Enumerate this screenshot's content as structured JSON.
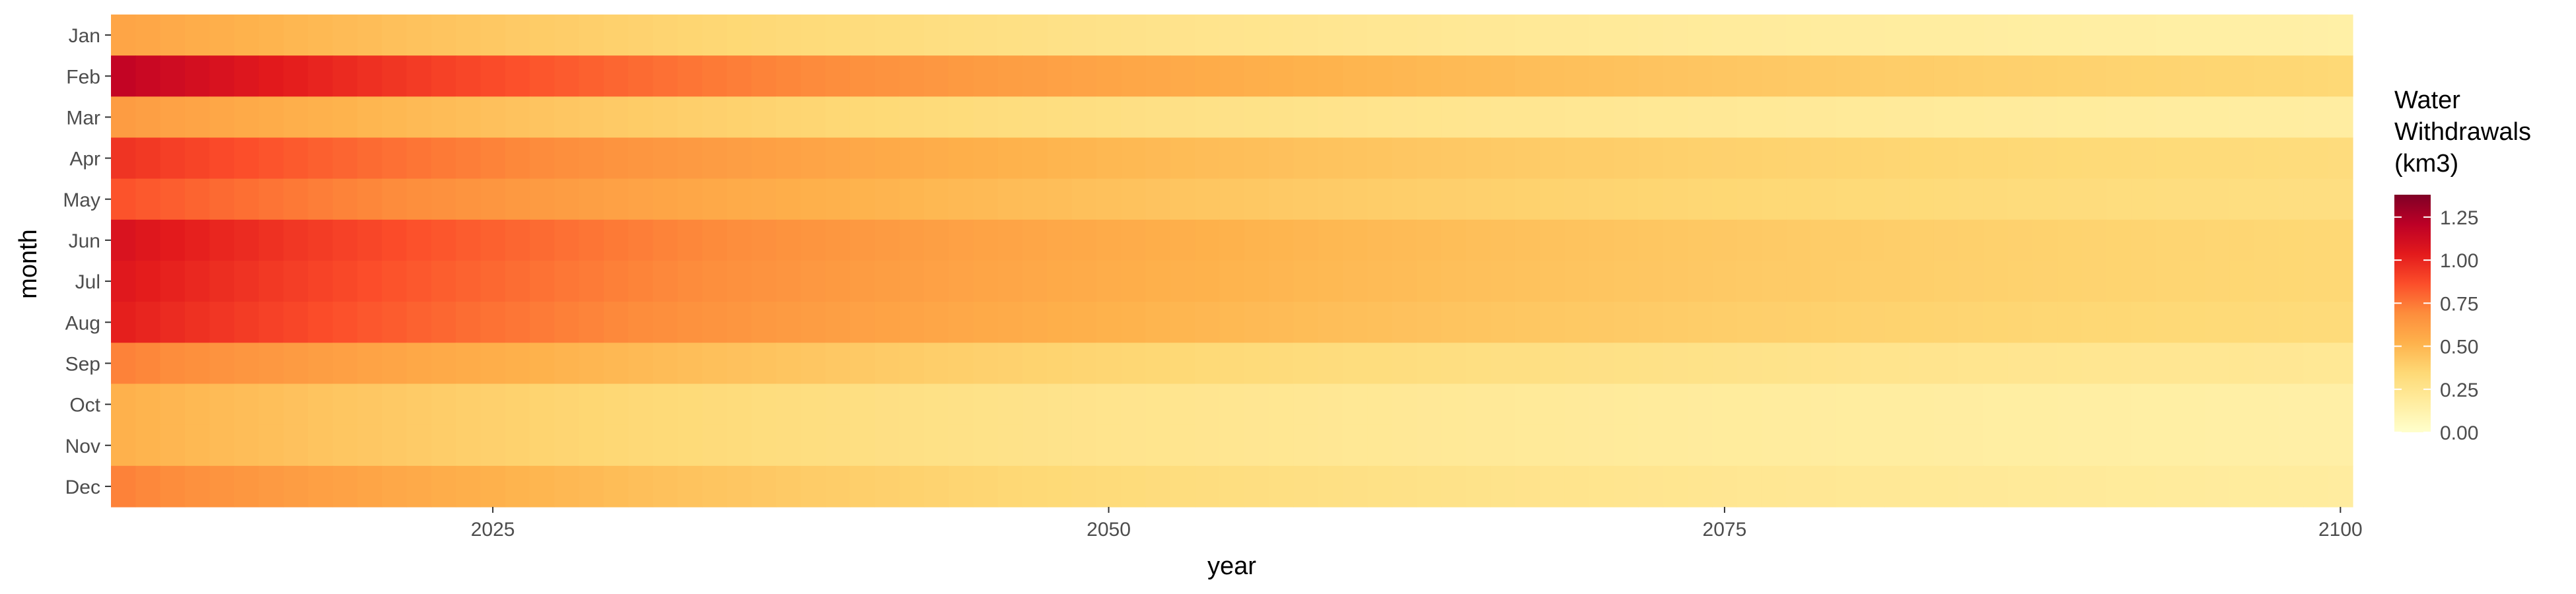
{
  "chart_data": {
    "type": "heatmap",
    "title": "",
    "xlabel": "year",
    "ylabel": "month",
    "x_start": 2010,
    "x_end": 2100,
    "xlim": [
      2009.5,
      2100.5
    ],
    "x_ticks": [
      2025,
      2050,
      2075,
      2100
    ],
    "months": [
      "Jan",
      "Feb",
      "Mar",
      "Apr",
      "May",
      "Jun",
      "Jul",
      "Aug",
      "Sep",
      "Oct",
      "Nov",
      "Dec"
    ],
    "month_start_values": [
      0.58,
      1.18,
      0.62,
      0.95,
      0.85,
      1.08,
      1.05,
      1.02,
      0.72,
      0.52,
      0.52,
      0.72
    ],
    "month_end_values": [
      0.15,
      0.35,
      0.17,
      0.32,
      0.3,
      0.35,
      0.35,
      0.33,
      0.22,
      0.15,
      0.15,
      0.18
    ],
    "legend": {
      "title_lines": [
        "Water",
        "Withdrawals",
        "(km3)"
      ],
      "min": 0,
      "max": 1.38,
      "ticks": [
        0.0,
        0.25,
        0.5,
        0.75,
        1.0,
        1.25
      ],
      "tick_labels": [
        "0.00",
        "0.25",
        "0.50",
        "0.75",
        "1.00",
        "1.25"
      ],
      "colors": [
        "#ffffcc",
        "#ffeda0",
        "#fed976",
        "#feb24c",
        "#fd8d3c",
        "#fc4e2a",
        "#e31a1c",
        "#bd0026",
        "#800026"
      ]
    }
  }
}
